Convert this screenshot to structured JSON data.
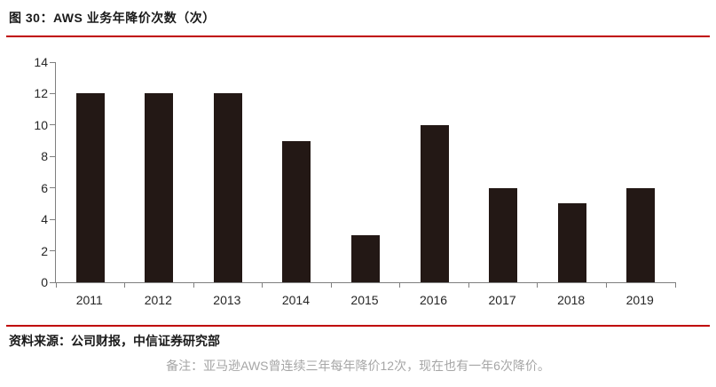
{
  "figure": {
    "title": "图 30：AWS 业务年降价次数（次）",
    "source": "资料来源：公司财报，中信证券研究部",
    "note": "备注：亚马逊AWS曾连续三年每年降价12次，现在也有一年6次降价。"
  },
  "colors": {
    "bar": "#231815",
    "accent_rule": "#C00000",
    "axis": "#7F7F7F",
    "label_text": "#262626",
    "note_text": "#A6A6A6"
  },
  "chart_data": {
    "type": "bar",
    "title": "AWS 业务年降价次数（次）",
    "categories": [
      "2011",
      "2012",
      "2013",
      "2014",
      "2015",
      "2016",
      "2017",
      "2018",
      "2019"
    ],
    "values": [
      12,
      12,
      12,
      9,
      3,
      10,
      6,
      5,
      6
    ],
    "xlabel": "",
    "ylabel": "",
    "ylim": [
      0,
      14
    ],
    "yticks": [
      0,
      2,
      4,
      6,
      8,
      10,
      12,
      14
    ],
    "grid": false,
    "legend": false,
    "bar_color": "#231815"
  }
}
